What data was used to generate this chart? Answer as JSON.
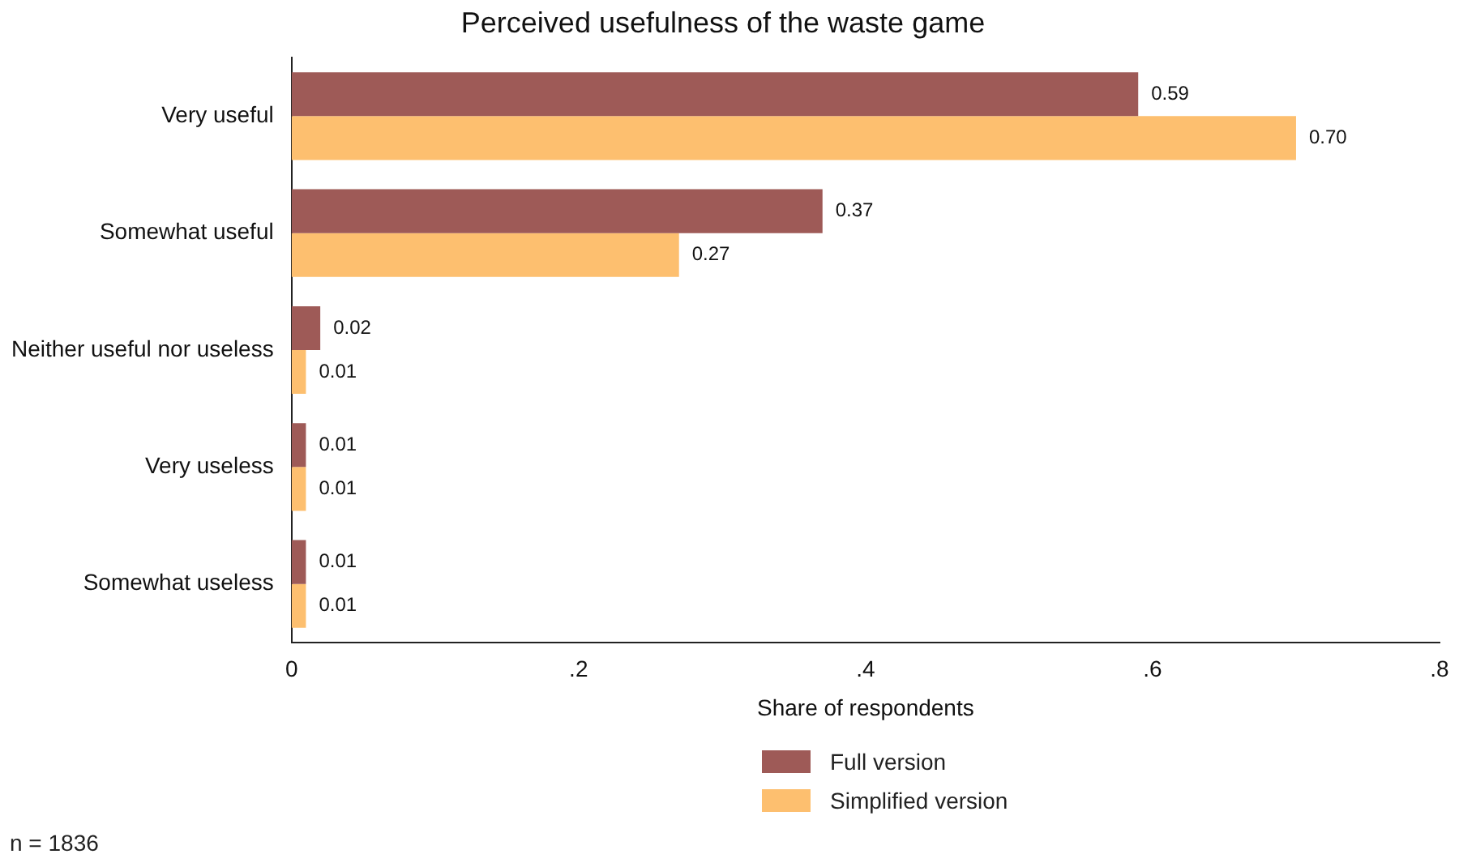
{
  "chart_data": {
    "type": "bar",
    "orientation": "horizontal",
    "title": "Perceived usefulness of the waste game",
    "xlabel": "Share of respondents",
    "categories": [
      "Very useful",
      "Somewhat useful",
      "Neither useful nor useless",
      "Very useless",
      "Somewhat useless"
    ],
    "series": [
      {
        "name": "Full version",
        "color": "#9e5a57",
        "values": [
          0.59,
          0.37,
          0.02,
          0.01,
          0.01
        ],
        "value_labels": [
          "0.59",
          "0.37",
          "0.02",
          "0.01",
          "0.01"
        ]
      },
      {
        "name": "Simplified version",
        "color": "#fdbf6f",
        "values": [
          0.7,
          0.27,
          0.01,
          0.01,
          0.01
        ],
        "value_labels": [
          "0.70",
          "0.27",
          "0.01",
          "0.01",
          "0.01"
        ]
      }
    ],
    "xlim": [
      0,
      0.8
    ],
    "xticks": [
      0,
      {
        "value": 0.2,
        "label": ".2"
      },
      {
        "value": 0.4,
        "label": ".4"
      },
      {
        "value": 0.6,
        "label": ".6"
      },
      {
        "value": 0.8,
        "label": ".8"
      }
    ],
    "grid": false,
    "legend": "bottom",
    "annotations": [
      "n = 1836"
    ]
  }
}
